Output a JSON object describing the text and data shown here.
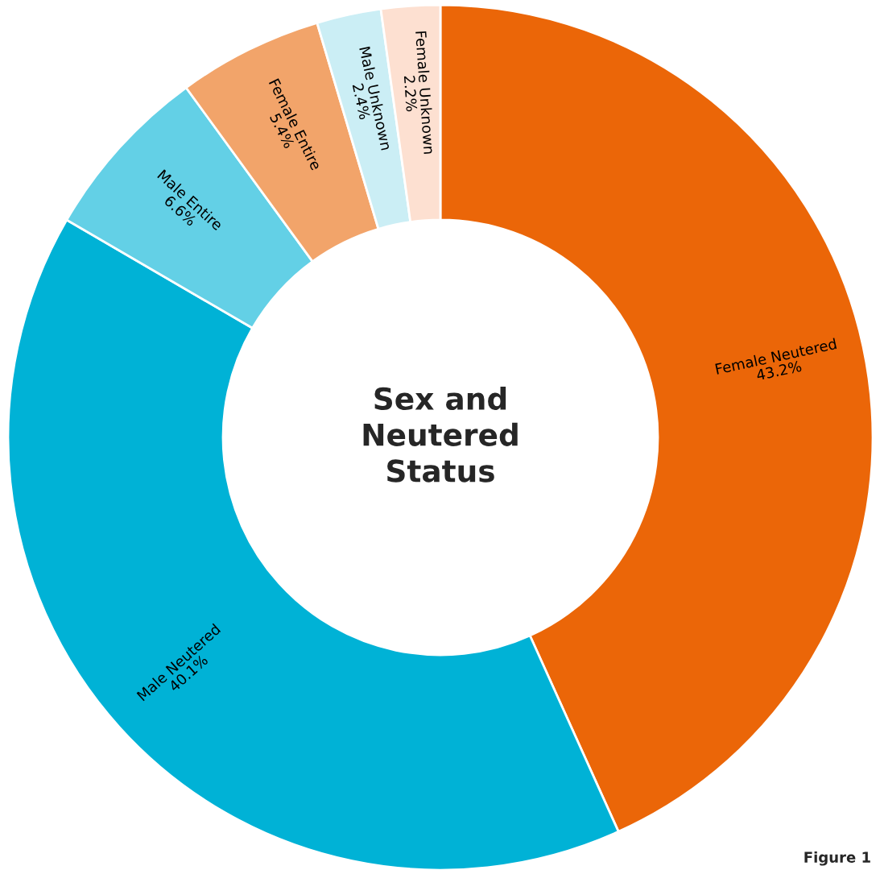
{
  "chart_data": {
    "type": "donut",
    "title": "Sex and Neutered Status",
    "categories": [
      "Female Neutered",
      "Male Neutered",
      "Male Entire",
      "Female Entire",
      "Male Unknown",
      "Female Unknown"
    ],
    "values": [
      43.2,
      40.1,
      6.6,
      5.4,
      2.4,
      2.2
    ],
    "colors": [
      "#eb6608",
      "#00b2d6",
      "#63d0e6",
      "#f2a46a",
      "#cbeef5",
      "#fde0d1"
    ],
    "value_labels": [
      "43.2%",
      "40.1%",
      "6.6%",
      "5.4%",
      "2.4%",
      "2.2%"
    ],
    "annotations": [
      "Figure 1"
    ]
  }
}
